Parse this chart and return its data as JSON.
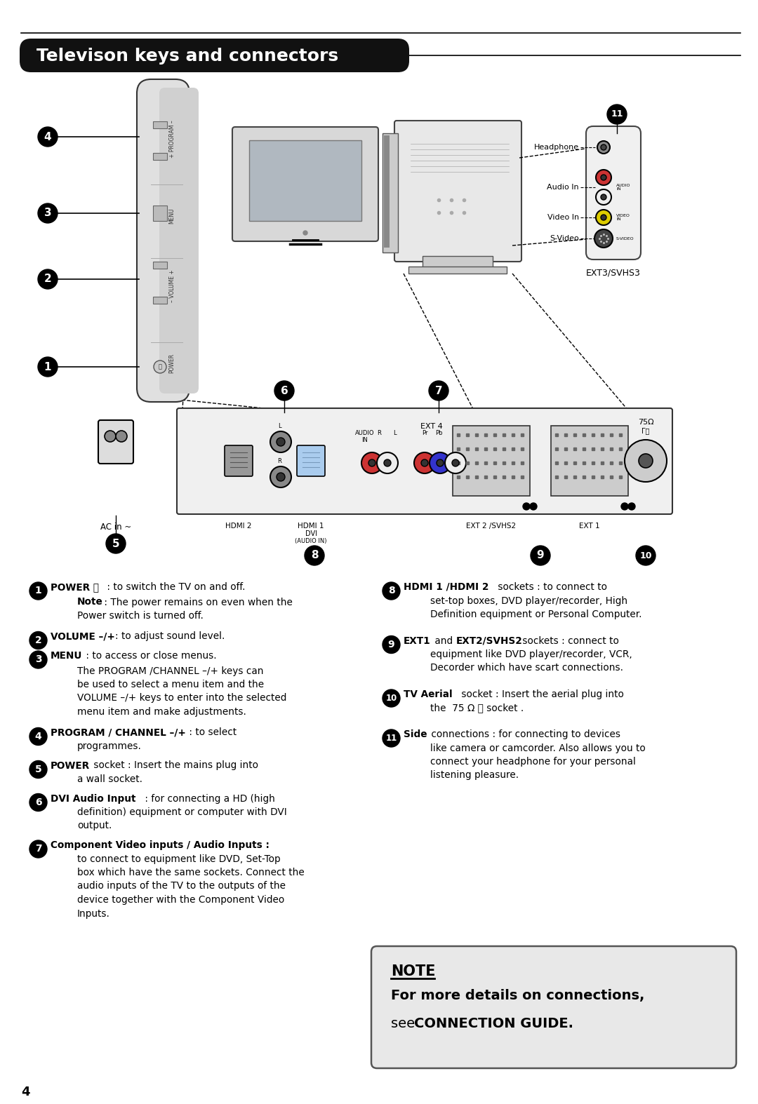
{
  "title": "Televison keys and connectors",
  "background_color": "#ffffff",
  "header_bg": "#111111",
  "header_text_color": "#ffffff",
  "body_text_color": "#000000",
  "page_number": "4",
  "note_box": {
    "title": "NOTE",
    "line1": "For more details on connections,",
    "line2_plain": "see ",
    "line2_bold": "CONNECTION GUIDE."
  }
}
